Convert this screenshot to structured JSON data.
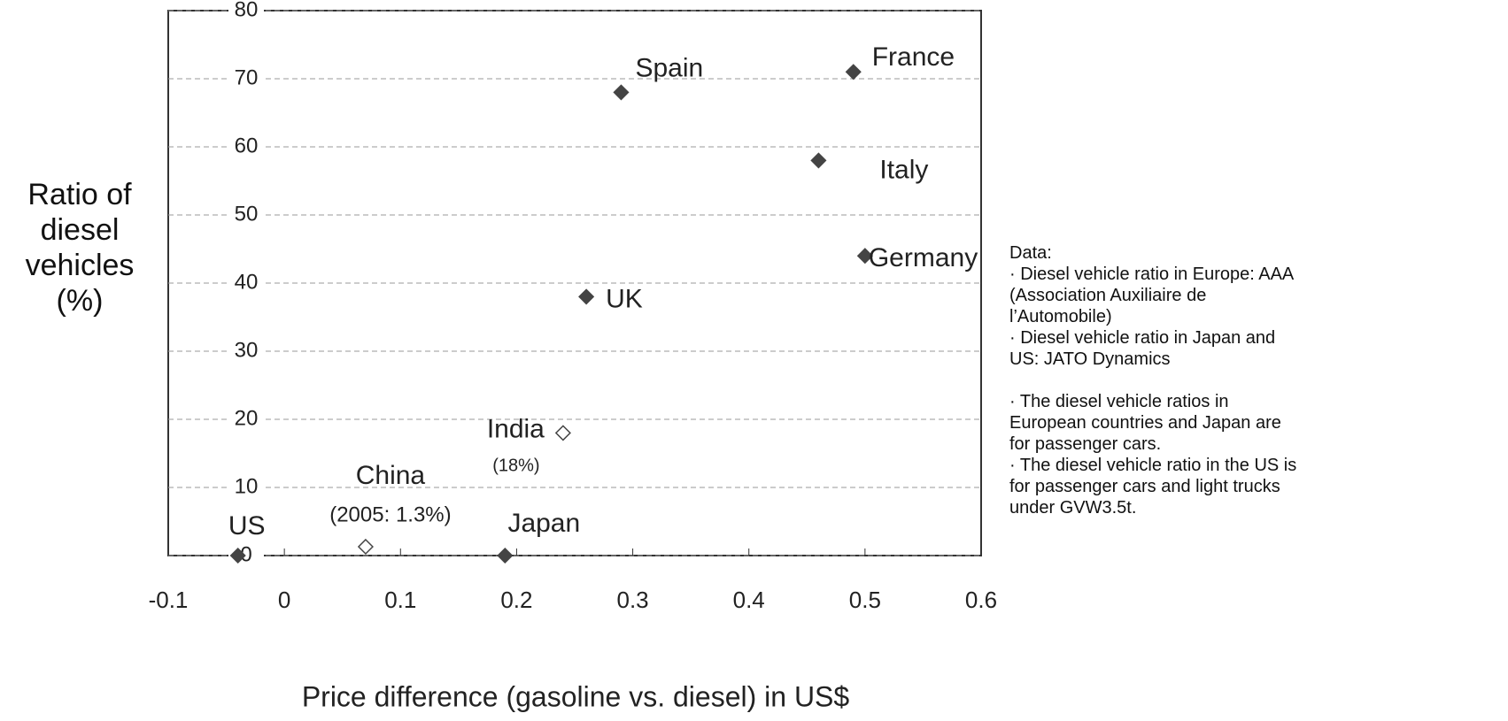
{
  "chart_data": {
    "type": "scatter",
    "x_label": "Price difference (gasoline vs. diesel) in US$",
    "y_label": "Ratio of diesel vehicles (%)",
    "xlim": [
      -0.1,
      0.6
    ],
    "xticks": [
      -0.1,
      0,
      0.1,
      0.2,
      0.3,
      0.4,
      0.5,
      0.6
    ],
    "ylim": [
      0,
      80
    ],
    "yticks": [
      0,
      10,
      20,
      30,
      40,
      50,
      60,
      70,
      80
    ],
    "grid": true,
    "color": "#444444",
    "x": [
      -0.04,
      0.07,
      0.19,
      0.24,
      0.26,
      0.29,
      0.49,
      0.46,
      0.5
    ],
    "values": [
      0,
      1.3,
      0,
      18,
      38,
      68,
      71,
      58,
      44
    ],
    "point_labels": [
      "US",
      "China",
      "Japan",
      "India",
      "UK",
      "Spain",
      "France",
      "Italy",
      "Germany"
    ],
    "point_notes": [
      null,
      "(2005: 1.3%)",
      null,
      "(18%)",
      null,
      null,
      null,
      null,
      null
    ],
    "hollow": [
      false,
      true,
      false,
      true,
      false,
      false,
      false,
      false,
      false
    ],
    "notes": [
      "Data:",
      "· Diesel vehicle ratio in Europe: AAA (Association Auxiliaire de l’Automobile)",
      "· Diesel vehicle ratio in Japan and US: JATO Dynamics",
      "· The diesel vehicle ratios in European countries and Japan are for passenger cars.",
      "· The diesel vehicle ratio in the US is for passenger cars and light trucks under GVW3.5t."
    ]
  }
}
